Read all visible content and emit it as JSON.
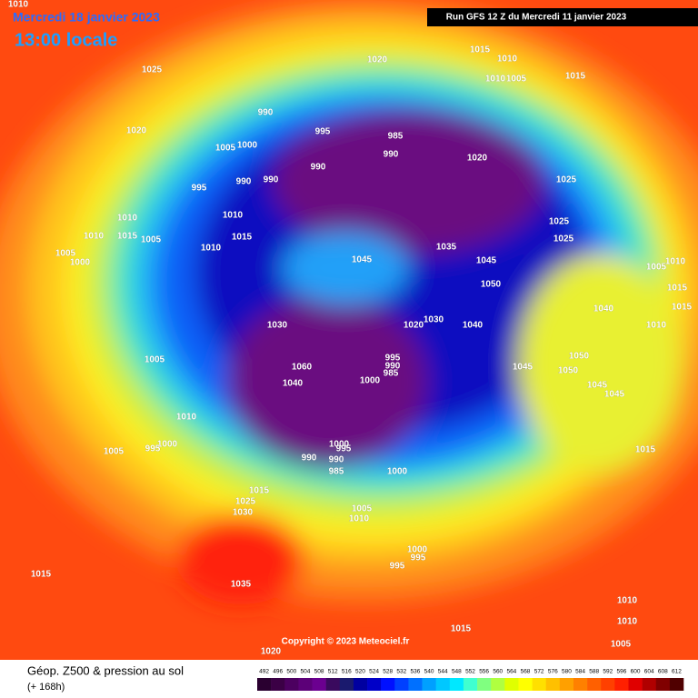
{
  "header": {
    "title": "Mercredi 18 janvier 2023",
    "time": "13:00 locale",
    "run": "Run GFS 12 Z du Mercredi 11 janvier 2023"
  },
  "copyright": "Copyright © 2023 Meteociel.fr",
  "footer": {
    "title": "Géop. Z500 & pression au sol",
    "subtitle": "(+ 168h)"
  },
  "scale": {
    "values": [
      492,
      496,
      500,
      504,
      508,
      512,
      516,
      520,
      524,
      528,
      532,
      536,
      540,
      544,
      548,
      552,
      556,
      560,
      564,
      568,
      572,
      576,
      580,
      584,
      588,
      592,
      596,
      600,
      604,
      608,
      612
    ],
    "colors": [
      "#2a0030",
      "#3b0045",
      "#4c0060",
      "#5c0078",
      "#6b0090",
      "#3a0a5e",
      "#1a1a6e",
      "#0000a0",
      "#0000c8",
      "#0010ff",
      "#0040ff",
      "#0070ff",
      "#00a0ff",
      "#00c8ff",
      "#00e8ff",
      "#40ffd0",
      "#80ff80",
      "#b0ff40",
      "#e0ff00",
      "#ffff00",
      "#ffe000",
      "#ffc000",
      "#ffa000",
      "#ff8000",
      "#ff6000",
      "#ff4000",
      "#ff2000",
      "#e00000",
      "#b00000",
      "#800000",
      "#500000"
    ]
  },
  "pressure_labels": [
    "1010",
    "1025",
    "1020",
    "1015",
    "1010",
    "1010",
    "1005",
    "1015",
    "1020",
    "990",
    "1005",
    "1000",
    "995",
    "985",
    "990",
    "990",
    "1020",
    "995",
    "990",
    "990",
    "1025",
    "1010",
    "1010",
    "1025",
    "1010",
    "1015",
    "1005",
    "1005",
    "1010",
    "1015",
    "1035",
    "1025",
    "1000",
    "1045",
    "1045",
    "1005",
    "1010",
    "1050",
    "1015",
    "1040",
    "1015",
    "1030",
    "1030",
    "1020",
    "1040",
    "1010",
    "1005",
    "1045",
    "1050",
    "1050",
    "995",
    "990",
    "985",
    "1000",
    "1040",
    "1060",
    "1045",
    "1045",
    "1010",
    "1000",
    "995",
    "1005",
    "995",
    "1000",
    "990",
    "990",
    "985",
    "1000",
    "1015",
    "1015",
    "1025",
    "1030",
    "1005",
    "1010",
    "1000",
    "995",
    "995",
    "1015",
    "1035",
    "1010",
    "1010",
    "1015",
    "1005",
    "1020"
  ]
}
